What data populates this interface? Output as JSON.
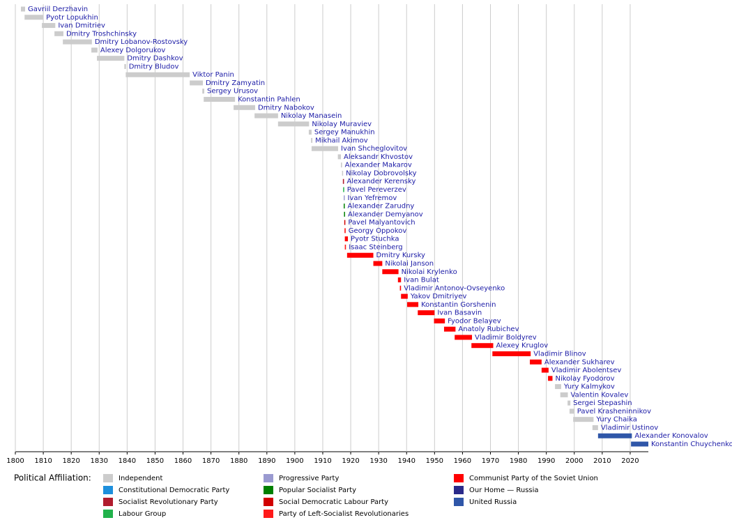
{
  "chart_data": {
    "type": "timeline",
    "xlim": [
      1800,
      2026.5
    ],
    "xticks": [
      1800,
      1810,
      1820,
      1830,
      1840,
      1850,
      1860,
      1870,
      1880,
      1890,
      1900,
      1910,
      1920,
      1930,
      1940,
      1950,
      1960,
      1970,
      1980,
      1990,
      2000,
      2010,
      2020
    ],
    "grid": true,
    "legend_title": "Political Affiliation:",
    "parties": [
      {
        "name": "Independent",
        "color": "#cccccc"
      },
      {
        "name": "Constitutional Democratic Party",
        "color": "#1e8fdc"
      },
      {
        "name": "Socialist Revolutionary Party",
        "color": "#b01c2e"
      },
      {
        "name": "Labour Group",
        "color": "#21b24b"
      },
      {
        "name": "Progressive Party",
        "color": "#9a9ad0"
      },
      {
        "name": "Popular Socialist Party",
        "color": "#008000"
      },
      {
        "name": "Social Democratic Labour Party",
        "color": "#d10000"
      },
      {
        "name": "Party of Left-Socialist Revolutionaries",
        "color": "#ff1a1a"
      },
      {
        "name": "Communist Party of the Soviet Union",
        "color": "#ff0000"
      },
      {
        "name": "Our Home — Russia",
        "color": "#2a2a8a"
      },
      {
        "name": "United Russia",
        "color": "#2f56a8"
      }
    ],
    "rows": [
      {
        "name": "Gavriil Derzhavin",
        "start": 1802,
        "end": 1803.5,
        "color": "#cccccc"
      },
      {
        "name": "Pyotr Lopukhin",
        "start": 1803.3,
        "end": 1810,
        "color": "#cccccc"
      },
      {
        "name": "Ivan Dmitriev",
        "start": 1809.5,
        "end": 1814.3,
        "color": "#cccccc"
      },
      {
        "name": "Dmitry Troshchinsky",
        "start": 1814,
        "end": 1817.2,
        "color": "#cccccc"
      },
      {
        "name": "Dmitry Lobanov-Rostovsky",
        "start": 1817,
        "end": 1827.4,
        "color": "#cccccc"
      },
      {
        "name": "Alexey Dolgorukov",
        "start": 1827.2,
        "end": 1829.4,
        "color": "#cccccc"
      },
      {
        "name": "Dmitry Dashkov",
        "start": 1829.2,
        "end": 1839,
        "color": "#cccccc"
      },
      {
        "name": "Dmitry Bludov",
        "start": 1839,
        "end": 1839.6,
        "color": "#cccccc"
      },
      {
        "name": "Viktor Panin",
        "start": 1839.5,
        "end": 1862.4,
        "color": "#cccccc"
      },
      {
        "name": "Dmitry Zamyatin",
        "start": 1862.4,
        "end": 1867.1,
        "color": "#cccccc"
      },
      {
        "name": "Sergey Urusov",
        "start": 1866.9,
        "end": 1867.6,
        "color": "#cccccc"
      },
      {
        "name": "Konstantin Pahlen",
        "start": 1867.4,
        "end": 1878.6,
        "color": "#cccccc"
      },
      {
        "name": "Dmitry Nabokov",
        "start": 1878.1,
        "end": 1885.8,
        "color": "#cccccc"
      },
      {
        "name": "Nikolay Manasein",
        "start": 1885.6,
        "end": 1894,
        "color": "#cccccc"
      },
      {
        "name": "Nikolay Muraviev",
        "start": 1894,
        "end": 1905.1,
        "color": "#cccccc"
      },
      {
        "name": "Sergey Manukhin",
        "start": 1905,
        "end": 1906,
        "color": "#cccccc"
      },
      {
        "name": "Mikhail Akimov",
        "start": 1905.8,
        "end": 1906.3,
        "color": "#cccccc"
      },
      {
        "name": "Ivan Shcheglovitov",
        "start": 1906,
        "end": 1915.5,
        "color": "#cccccc"
      },
      {
        "name": "Aleksandr Khvostov",
        "start": 1915.4,
        "end": 1916.5,
        "color": "#cccccc"
      },
      {
        "name": "Alexander Makarov",
        "start": 1916.5,
        "end": 1916.9,
        "color": "#cccccc"
      },
      {
        "name": "Nikolay Dobrovolsky",
        "start": 1916.9,
        "end": 1917.2,
        "color": "#cccccc"
      },
      {
        "name": "Alexander Kerensky",
        "start": 1917.2,
        "end": 1917.6,
        "color": "#b01c2e"
      },
      {
        "name": "Pavel Pereverzev",
        "start": 1917.3,
        "end": 1917.6,
        "color": "#21b24b"
      },
      {
        "name": "Ivan Yefremov",
        "start": 1917.5,
        "end": 1917.7,
        "color": "#9a9ad0"
      },
      {
        "name": "Alexander Zarudny",
        "start": 1917.5,
        "end": 1917.8,
        "color": "#008000"
      },
      {
        "name": "Alexander Demyanov",
        "start": 1917.6,
        "end": 1917.8,
        "color": "#008000"
      },
      {
        "name": "Pavel Malyantovich",
        "start": 1917.7,
        "end": 1917.9,
        "color": "#d10000"
      },
      {
        "name": "Georgy Oppokov",
        "start": 1917.8,
        "end": 1918,
        "color": "#ff0000"
      },
      {
        "name": "Pyotr Stuchka",
        "start": 1917.9,
        "end": 1919,
        "color": "#ff0000"
      },
      {
        "name": "Isaac Steinberg",
        "start": 1917.9,
        "end": 1918.3,
        "color": "#ff1a1a"
      },
      {
        "name": "Dmitry Kursky",
        "start": 1918.7,
        "end": 1928.1,
        "color": "#ff0000"
      },
      {
        "name": "Nikolai Janson",
        "start": 1928.1,
        "end": 1931.3,
        "color": "#ff0000"
      },
      {
        "name": "Nikolai Krylenko",
        "start": 1931.3,
        "end": 1937.1,
        "color": "#ff0000"
      },
      {
        "name": "Ivan Bulat",
        "start": 1936.9,
        "end": 1938,
        "color": "#ff0000"
      },
      {
        "name": "Vladimir Antonov-Ovseyenko",
        "start": 1937.6,
        "end": 1938,
        "color": "#ff0000"
      },
      {
        "name": "Yakov Dmitriyev",
        "start": 1938,
        "end": 1940.4,
        "color": "#ff0000"
      },
      {
        "name": "Konstantin Gorshenin",
        "start": 1940.2,
        "end": 1944.2,
        "color": "#ff0000"
      },
      {
        "name": "Ivan Basavin",
        "start": 1944,
        "end": 1950,
        "color": "#ff0000"
      },
      {
        "name": "Fyodor Belayev",
        "start": 1949.8,
        "end": 1953.7,
        "color": "#ff0000"
      },
      {
        "name": "Anatoly Rubichev",
        "start": 1953.4,
        "end": 1957.5,
        "color": "#ff0000"
      },
      {
        "name": "Vladimir Boldyrev",
        "start": 1957.2,
        "end": 1963.4,
        "color": "#ff0000"
      },
      {
        "name": "Alexey Kruglov",
        "start": 1963.2,
        "end": 1971,
        "color": "#ff0000"
      },
      {
        "name": "Vladimir Blinov",
        "start": 1970.7,
        "end": 1984.4,
        "color": "#ff0000"
      },
      {
        "name": "Alexander Sukharev",
        "start": 1984.1,
        "end": 1988.3,
        "color": "#ff0000"
      },
      {
        "name": "Vladimir Abolentsev",
        "start": 1988.3,
        "end": 1990.8,
        "color": "#ff0000"
      },
      {
        "name": "Nikolay Fyodorov",
        "start": 1990.6,
        "end": 1992.2,
        "color": "#ff0000"
      },
      {
        "name": "Yury Kalmykov",
        "start": 1993.1,
        "end": 1995.3,
        "color": "#cccccc"
      },
      {
        "name": "Valentin Kovalev",
        "start": 1995,
        "end": 1997.7,
        "color": "#cccccc"
      },
      {
        "name": "Sergei Stepashin",
        "start": 1997.6,
        "end": 1998.6,
        "color": "#cccccc"
      },
      {
        "name": "Pavel Krasheninnikov",
        "start": 1998.3,
        "end": 2000,
        "color": "#cccccc"
      },
      {
        "name": "Yury Chaika",
        "start": 1999.6,
        "end": 2006.9,
        "color": "#cccccc"
      },
      {
        "name": "Vladimir Ustinov",
        "start": 2006.5,
        "end": 2008.5,
        "color": "#cccccc"
      },
      {
        "name": "Alexander Konovalov",
        "start": 2008.5,
        "end": 2020.6,
        "color": "#2f56a8"
      },
      {
        "name": "Konstantin Chuychenko",
        "start": 2020.3,
        "end": 2026.5,
        "color": "#2f56a8"
      }
    ]
  }
}
